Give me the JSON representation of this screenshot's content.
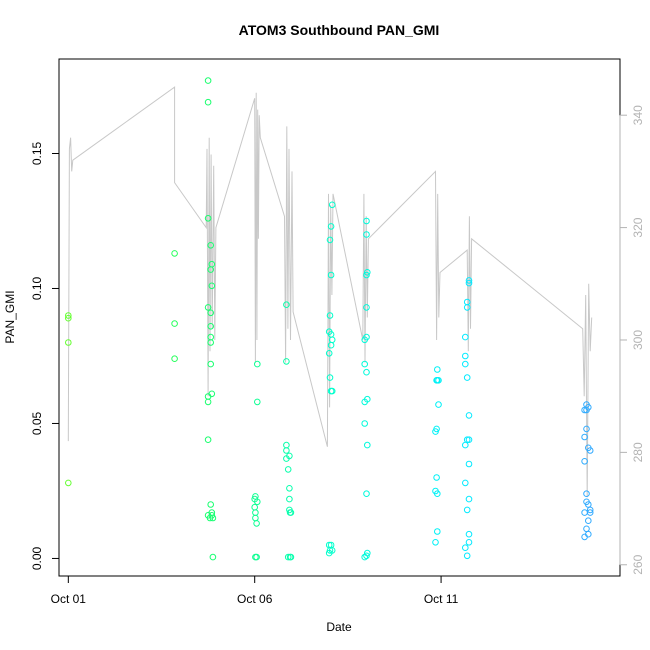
{
  "chart_data": {
    "type": "scatter",
    "title": "ATOM3 Southbound PAN_GMI",
    "xlabel": "Date",
    "ylabel": "PAN_GMI",
    "x_unit": "day of October",
    "xlim": [
      0.75,
      15.8
    ],
    "ylim": [
      -0.0065,
      0.185
    ],
    "x_ticks": [
      1,
      6,
      11
    ],
    "x_tick_labels": [
      "Oct 01",
      "Oct 06",
      "Oct 11"
    ],
    "y_ticks": [
      0.0,
      0.05,
      0.1,
      0.15
    ],
    "y_tick_labels": [
      "0.00",
      "0.05",
      "0.10",
      "0.15"
    ],
    "y2_range": [
      258,
      350
    ],
    "y2_ticks": [
      260,
      280,
      300,
      320,
      340
    ],
    "y2_tick_labels": [
      "260",
      "280",
      "300",
      "320",
      "340"
    ],
    "grid": false,
    "colors": {
      "secondary_line": "#c8c8c8",
      "axis": "#000000",
      "right_axis": "#b3b3b3",
      "gradient": [
        "#66ff33",
        "#1aff66",
        "#00ffcc",
        "#00eeff",
        "#33aaff"
      ]
    },
    "points": [
      {
        "x": 1.0,
        "y": 0.089
      },
      {
        "x": 1.0,
        "y": 0.09
      },
      {
        "x": 1.0,
        "y": 0.08
      },
      {
        "x": 1.0,
        "y": 0.028
      },
      {
        "x": 3.85,
        "y": 0.113
      },
      {
        "x": 3.85,
        "y": 0.087
      },
      {
        "x": 3.85,
        "y": 0.074
      },
      {
        "x": 4.75,
        "y": 0.177
      },
      {
        "x": 4.75,
        "y": 0.169
      },
      {
        "x": 4.75,
        "y": 0.126
      },
      {
        "x": 4.75,
        "y": 0.093
      },
      {
        "x": 4.75,
        "y": 0.06
      },
      {
        "x": 4.75,
        "y": 0.058
      },
      {
        "x": 4.75,
        "y": 0.044
      },
      {
        "x": 4.75,
        "y": 0.016
      },
      {
        "x": 4.8,
        "y": 0.015
      },
      {
        "x": 4.82,
        "y": 0.116
      },
      {
        "x": 4.82,
        "y": 0.107
      },
      {
        "x": 4.82,
        "y": 0.091
      },
      {
        "x": 4.82,
        "y": 0.086
      },
      {
        "x": 4.82,
        "y": 0.082
      },
      {
        "x": 4.82,
        "y": 0.08
      },
      {
        "x": 4.82,
        "y": 0.072
      },
      {
        "x": 4.82,
        "y": 0.02
      },
      {
        "x": 4.85,
        "y": 0.109
      },
      {
        "x": 4.85,
        "y": 0.101
      },
      {
        "x": 4.85,
        "y": 0.061
      },
      {
        "x": 4.85,
        "y": 0.017
      },
      {
        "x": 4.85,
        "y": 0.016
      },
      {
        "x": 4.88,
        "y": 0.015
      },
      {
        "x": 4.88,
        "y": 0.0005
      },
      {
        "x": 6.0,
        "y": 0.022
      },
      {
        "x": 6.0,
        "y": 0.019
      },
      {
        "x": 6.02,
        "y": 0.023
      },
      {
        "x": 6.02,
        "y": 0.017
      },
      {
        "x": 6.02,
        "y": 0.015
      },
      {
        "x": 6.02,
        "y": 0.0005
      },
      {
        "x": 6.05,
        "y": 0.013
      },
      {
        "x": 6.05,
        "y": 0.0005
      },
      {
        "x": 6.07,
        "y": 0.072
      },
      {
        "x": 6.07,
        "y": 0.058
      },
      {
        "x": 6.07,
        "y": 0.021
      },
      {
        "x": 6.85,
        "y": 0.094
      },
      {
        "x": 6.85,
        "y": 0.073
      },
      {
        "x": 6.85,
        "y": 0.042
      },
      {
        "x": 6.85,
        "y": 0.04
      },
      {
        "x": 6.85,
        "y": 0.037
      },
      {
        "x": 6.9,
        "y": 0.033
      },
      {
        "x": 6.9,
        "y": 0.0005
      },
      {
        "x": 6.93,
        "y": 0.038
      },
      {
        "x": 6.93,
        "y": 0.026
      },
      {
        "x": 6.93,
        "y": 0.022
      },
      {
        "x": 6.93,
        "y": 0.018
      },
      {
        "x": 6.95,
        "y": 0.017
      },
      {
        "x": 6.95,
        "y": 0.0005
      },
      {
        "x": 6.97,
        "y": 0.017
      },
      {
        "x": 6.97,
        "y": 0.0005
      },
      {
        "x": 8.0,
        "y": 0.084
      },
      {
        "x": 8.0,
        "y": 0.076
      },
      {
        "x": 8.0,
        "y": 0.005
      },
      {
        "x": 8.0,
        "y": 0.002
      },
      {
        "x": 8.02,
        "y": 0.118
      },
      {
        "x": 8.02,
        "y": 0.09
      },
      {
        "x": 8.02,
        "y": 0.067
      },
      {
        "x": 8.02,
        "y": 0.003
      },
      {
        "x": 8.05,
        "y": 0.123
      },
      {
        "x": 8.05,
        "y": 0.105
      },
      {
        "x": 8.05,
        "y": 0.083
      },
      {
        "x": 8.05,
        "y": 0.079
      },
      {
        "x": 8.05,
        "y": 0.062
      },
      {
        "x": 8.05,
        "y": 0.005
      },
      {
        "x": 8.08,
        "y": 0.131
      },
      {
        "x": 8.08,
        "y": 0.081
      },
      {
        "x": 8.08,
        "y": 0.062
      },
      {
        "x": 8.08,
        "y": 0.003
      },
      {
        "x": 8.95,
        "y": 0.081
      },
      {
        "x": 8.95,
        "y": 0.072
      },
      {
        "x": 8.95,
        "y": 0.058
      },
      {
        "x": 8.95,
        "y": 0.05
      },
      {
        "x": 8.95,
        "y": 0.0005
      },
      {
        "x": 9.0,
        "y": 0.125
      },
      {
        "x": 9.0,
        "y": 0.12
      },
      {
        "x": 9.0,
        "y": 0.105
      },
      {
        "x": 9.0,
        "y": 0.093
      },
      {
        "x": 9.0,
        "y": 0.082
      },
      {
        "x": 9.0,
        "y": 0.069
      },
      {
        "x": 9.0,
        "y": 0.024
      },
      {
        "x": 9.0,
        "y": 0.001
      },
      {
        "x": 9.02,
        "y": 0.106
      },
      {
        "x": 9.02,
        "y": 0.059
      },
      {
        "x": 9.02,
        "y": 0.042
      },
      {
        "x": 9.02,
        "y": 0.002
      },
      {
        "x": 10.85,
        "y": 0.047
      },
      {
        "x": 10.85,
        "y": 0.025
      },
      {
        "x": 10.85,
        "y": 0.006
      },
      {
        "x": 10.88,
        "y": 0.066
      },
      {
        "x": 10.88,
        "y": 0.048
      },
      {
        "x": 10.88,
        "y": 0.03
      },
      {
        "x": 10.9,
        "y": 0.07
      },
      {
        "x": 10.9,
        "y": 0.066
      },
      {
        "x": 10.9,
        "y": 0.024
      },
      {
        "x": 10.9,
        "y": 0.01
      },
      {
        "x": 10.93,
        "y": 0.066
      },
      {
        "x": 10.93,
        "y": 0.057
      },
      {
        "x": 11.65,
        "y": 0.082
      },
      {
        "x": 11.65,
        "y": 0.075
      },
      {
        "x": 11.65,
        "y": 0.072
      },
      {
        "x": 11.65,
        "y": 0.042
      },
      {
        "x": 11.65,
        "y": 0.028
      },
      {
        "x": 11.65,
        "y": 0.004
      },
      {
        "x": 11.7,
        "y": 0.095
      },
      {
        "x": 11.7,
        "y": 0.093
      },
      {
        "x": 11.7,
        "y": 0.067
      },
      {
        "x": 11.7,
        "y": 0.044
      },
      {
        "x": 11.7,
        "y": 0.018
      },
      {
        "x": 11.7,
        "y": 0.001
      },
      {
        "x": 11.75,
        "y": 0.103
      },
      {
        "x": 11.75,
        "y": 0.102
      },
      {
        "x": 11.75,
        "y": 0.053
      },
      {
        "x": 11.75,
        "y": 0.044
      },
      {
        "x": 11.75,
        "y": 0.035
      },
      {
        "x": 11.75,
        "y": 0.022
      },
      {
        "x": 11.75,
        "y": 0.009
      },
      {
        "x": 11.75,
        "y": 0.006
      },
      {
        "x": 14.85,
        "y": 0.055
      },
      {
        "x": 14.85,
        "y": 0.045
      },
      {
        "x": 14.85,
        "y": 0.036
      },
      {
        "x": 14.85,
        "y": 0.017
      },
      {
        "x": 14.85,
        "y": 0.008
      },
      {
        "x": 14.9,
        "y": 0.057
      },
      {
        "x": 14.9,
        "y": 0.055
      },
      {
        "x": 14.9,
        "y": 0.048
      },
      {
        "x": 14.9,
        "y": 0.024
      },
      {
        "x": 14.9,
        "y": 0.021
      },
      {
        "x": 14.9,
        "y": 0.011
      },
      {
        "x": 14.95,
        "y": 0.056
      },
      {
        "x": 14.95,
        "y": 0.041
      },
      {
        "x": 14.95,
        "y": 0.02
      },
      {
        "x": 14.95,
        "y": 0.014
      },
      {
        "x": 14.95,
        "y": 0.009
      },
      {
        "x": 15.0,
        "y": 0.04
      },
      {
        "x": 15.0,
        "y": 0.018
      },
      {
        "x": 15.0,
        "y": 0.017
      }
    ],
    "line_series": {
      "axis": "right",
      "description_of_values": "right-axis values (260–340 scale), drawn as light grey line",
      "x": [
        1.0,
        1.03,
        1.06,
        1.09,
        1.12,
        3.85,
        3.85,
        4.7,
        4.72,
        4.75,
        4.78,
        4.8,
        4.83,
        4.86,
        4.9,
        4.93,
        4.96,
        6.0,
        6.02,
        6.04,
        6.06,
        6.08,
        6.1,
        6.12,
        6.15,
        6.8,
        6.83,
        6.86,
        6.89,
        6.92,
        6.96,
        7.0,
        7.03,
        7.95,
        7.98,
        8.01,
        8.04,
        8.07,
        8.1,
        8.9,
        8.93,
        8.96,
        8.99,
        9.02,
        9.05,
        10.85,
        10.88,
        10.91,
        10.94,
        10.97,
        11.7,
        11.73,
        11.76,
        11.79,
        11.82,
        14.8,
        14.84,
        14.88,
        14.92,
        14.96,
        15.0,
        15.04
      ],
      "y": [
        282,
        334,
        336,
        330,
        332,
        345,
        328,
        320,
        334,
        290,
        336,
        298,
        333,
        302,
        331,
        300,
        320,
        343,
        296,
        344,
        300,
        341,
        318,
        340,
        336,
        322,
        296,
        338,
        302,
        334,
        300,
        330,
        305,
        281,
        326,
        288,
        324,
        308,
        326,
        300,
        326,
        296,
        322,
        304,
        318,
        330,
        300,
        326,
        304,
        312,
        316,
        298,
        322,
        302,
        318,
        302,
        290,
        308,
        272,
        310,
        298,
        304
      ]
    }
  }
}
